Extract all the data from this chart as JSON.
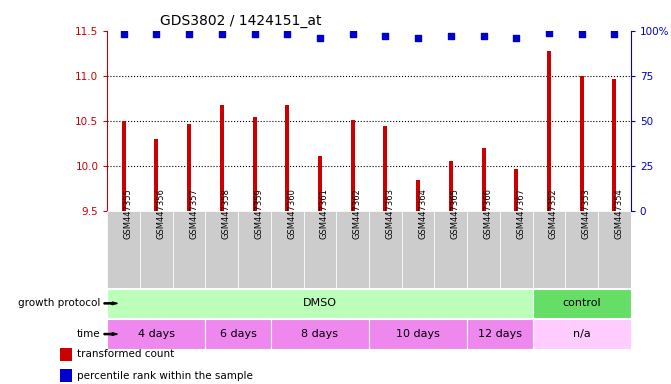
{
  "title": "GDS3802 / 1424151_at",
  "samples": [
    "GSM447355",
    "GSM447356",
    "GSM447357",
    "GSM447358",
    "GSM447359",
    "GSM447360",
    "GSM447361",
    "GSM447362",
    "GSM447363",
    "GSM447364",
    "GSM447365",
    "GSM447366",
    "GSM447367",
    "GSM447352",
    "GSM447353",
    "GSM447354"
  ],
  "bar_values": [
    10.5,
    10.3,
    10.47,
    10.68,
    10.54,
    10.68,
    10.11,
    10.51,
    10.44,
    9.85,
    10.06,
    10.2,
    9.97,
    11.27,
    11.0,
    10.97
  ],
  "percentile_values": [
    98,
    98,
    98,
    98,
    98,
    98,
    96,
    98,
    97,
    96,
    97,
    97,
    96,
    99,
    98,
    98
  ],
  "bar_color": "#cc0000",
  "dot_color": "#0000cc",
  "ylim_left": [
    9.5,
    11.5
  ],
  "ylim_right": [
    0,
    100
  ],
  "yticks_left": [
    9.5,
    10.0,
    10.5,
    11.0,
    11.5
  ],
  "yticks_right": [
    0,
    25,
    50,
    75,
    100
  ],
  "ytick_labels_right": [
    "0",
    "25",
    "50",
    "75",
    "100%"
  ],
  "grid_values": [
    10.0,
    10.5,
    11.0
  ],
  "growth_protocol_label": "growth protocol",
  "time_label": "time",
  "protocol_groups": [
    {
      "label": "DMSO",
      "start": 0,
      "end": 13,
      "color": "#bbffbb"
    },
    {
      "label": "control",
      "start": 13,
      "end": 16,
      "color": "#66dd66"
    }
  ],
  "time_groups": [
    {
      "label": "4 days",
      "start": 0,
      "end": 3,
      "color": "#ee88ee"
    },
    {
      "label": "6 days",
      "start": 3,
      "end": 5,
      "color": "#ee88ee"
    },
    {
      "label": "8 days",
      "start": 5,
      "end": 8,
      "color": "#ee88ee"
    },
    {
      "label": "10 days",
      "start": 8,
      "end": 11,
      "color": "#ee88ee"
    },
    {
      "label": "12 days",
      "start": 11,
      "end": 13,
      "color": "#ee88ee"
    },
    {
      "label": "n/a",
      "start": 13,
      "end": 16,
      "color": "#ffccff"
    }
  ],
  "legend_items": [
    {
      "color": "#cc0000",
      "label": "transformed count"
    },
    {
      "color": "#0000cc",
      "label": "percentile rank within the sample"
    }
  ],
  "bar_width": 0.12,
  "dot_size": 15,
  "label_area_color": "#cccccc",
  "bg_color": "#ffffff"
}
